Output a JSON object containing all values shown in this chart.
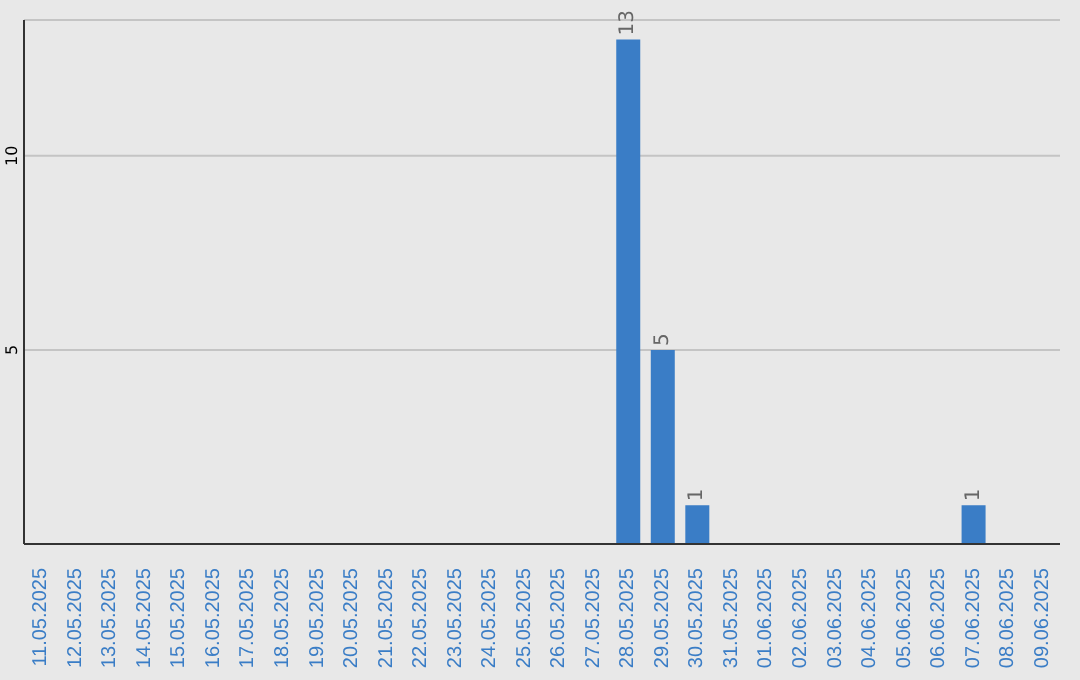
{
  "chart_data": {
    "type": "bar",
    "categories": [
      "11.05.2025",
      "12.05.2025",
      "13.05.2025",
      "14.05.2025",
      "15.05.2025",
      "16.05.2025",
      "17.05.2025",
      "18.05.2025",
      "19.05.2025",
      "20.05.2025",
      "21.05.2025",
      "22.05.2025",
      "23.05.2025",
      "24.05.2025",
      "25.05.2025",
      "26.05.2025",
      "27.05.2025",
      "28.05.2025",
      "29.05.2025",
      "30.05.2025",
      "31.05.2025",
      "01.06.2025",
      "02.06.2025",
      "03.06.2025",
      "04.06.2025",
      "05.06.2025",
      "06.06.2025",
      "07.06.2025",
      "08.06.2025",
      "09.06.2025"
    ],
    "values": [
      0,
      0,
      0,
      0,
      0,
      0,
      0,
      0,
      0,
      0,
      0,
      0,
      0,
      0,
      0,
      0,
      0,
      13,
      5,
      1,
      0,
      0,
      0,
      0,
      0,
      0,
      0,
      1,
      0,
      0
    ],
    "value_labels": [
      null,
      null,
      null,
      null,
      null,
      null,
      null,
      null,
      null,
      null,
      null,
      null,
      null,
      null,
      null,
      null,
      null,
      "13",
      "5",
      "1",
      null,
      null,
      null,
      null,
      null,
      null,
      null,
      "1",
      null,
      null
    ],
    "color": "#3a7dc6",
    "ylim": [
      0,
      13.5
    ],
    "yticks": [
      5,
      10
    ],
    "grid": "y",
    "legend": false
  }
}
